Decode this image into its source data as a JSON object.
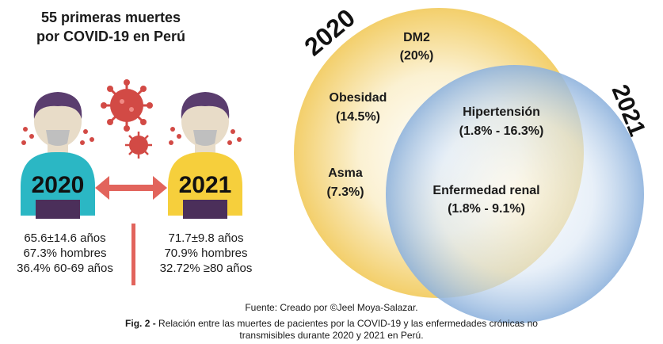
{
  "left_panel": {
    "title_line1": "55 primeras muertes",
    "title_line2": "por COVID-19  en Perú",
    "person_2020": {
      "year": "2020",
      "shirt_color": "#2bb7c4"
    },
    "person_2021": {
      "year": "2021",
      "shirt_color": "#f6cf3c"
    },
    "arrow_color": "#e2645c",
    "stats_2020": [
      "65.6±14.6 años",
      "67.3% hombres",
      "36.4% 60-69 años"
    ],
    "stats_2021": [
      "71.7±9.8 años",
      "70.9% hombres",
      "32.72% ≥80 años"
    ]
  },
  "venn": {
    "set_2020": {
      "label": "2020",
      "color": "#f3cf6b"
    },
    "set_2021": {
      "label": "2021",
      "color": "#8fb3dd"
    },
    "regions": {
      "dm2": {
        "name": "DM2",
        "value": "(20%)"
      },
      "obesidad": {
        "name": "Obesidad",
        "value": "(14.5%)"
      },
      "asma": {
        "name": "Asma",
        "value": "(7.3%)"
      },
      "hipertension": {
        "name": "Hipertensión",
        "value": "(1.8%  - 16.3%)"
      },
      "renal": {
        "name": "Enfermedad renal",
        "value": "(1.8%  - 9.1%)"
      }
    }
  },
  "footer": {
    "source": "Fuente: Creado por ©Jeel Moya-Salazar.",
    "fig_label": "Fig. 2 -",
    "caption_line1": " Relación entre las muertes de pacientes por la COVID-19 y las enfermedades crónicas no",
    "caption_line2": "transmisibles durante 2020 y 2021 en Perú."
  }
}
